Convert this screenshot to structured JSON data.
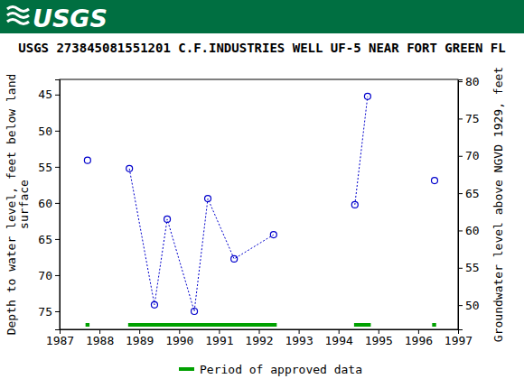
{
  "chart_data": {
    "type": "line",
    "logo": "USGS",
    "title": "USGS 273845081551201 C.F.INDUSTRIES WELL UF-5 NEAR FORT GREEN FL",
    "ylabel": [
      "Depth to water level, feet below land",
      "surface"
    ],
    "y2label": "Groundwater level above NGVD 1929, feet",
    "x": [
      1987.7,
      null,
      1988.75,
      1989.38,
      1989.7,
      1990.38,
      1990.72,
      1991.38,
      1992.37,
      null,
      1994.41,
      1994.73,
      null,
      1996.41
    ],
    "series": [
      {
        "color": "#0000cc",
        "marker": "circle",
        "line_style": "dotted",
        "values": [
          54.1,
          null,
          55.25,
          74.1,
          62.25,
          75.0,
          59.4,
          67.75,
          64.4,
          null,
          60.25,
          45.25,
          null,
          56.9
        ]
      }
    ],
    "xlim": [
      1987,
      1997
    ],
    "xticks": [
      1987,
      1988,
      1989,
      1990,
      1991,
      1992,
      1993,
      1994,
      1995,
      1996,
      1997
    ],
    "ylim": [
      77.5,
      42.9
    ],
    "yticks": [
      45,
      50,
      55,
      60,
      65,
      70,
      75
    ],
    "y2lim": [
      46.75,
      80.25
    ],
    "y2ticks": [
      50,
      55,
      60,
      65,
      70,
      75,
      80
    ],
    "periods": {
      "label": "Period of approved data",
      "color": "#00a000",
      "ranges": [
        [
          1987.65,
          1987.75
        ],
        [
          1988.72,
          1992.45
        ],
        [
          1994.39,
          1994.81
        ],
        [
          1996.35,
          1996.45
        ]
      ]
    }
  }
}
